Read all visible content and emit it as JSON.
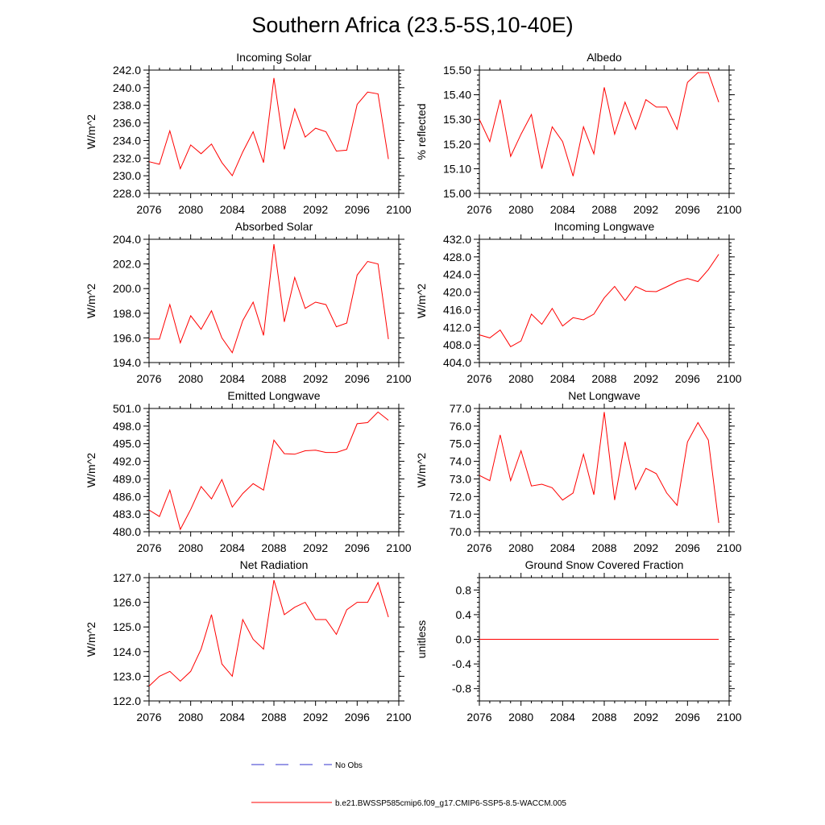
{
  "title": "Southern Africa (23.5-5S,10-40E)",
  "colors": {
    "model": "#ff0000",
    "obs": "#3333cc",
    "axis": "#000000"
  },
  "legend": {
    "obs_label": "No Obs",
    "model_label": "b.e21.BWSSP585cmip6.f09_g17.CMIP6-SSP5-8.5-WACCM.005"
  },
  "chart_data": [
    {
      "type": "line",
      "title": "Incoming Solar",
      "ylabel": "W/m^2",
      "xlim": [
        2076,
        2100
      ],
      "xticks": [
        "2076",
        "2080",
        "2084",
        "2088",
        "2092",
        "2096",
        "2100"
      ],
      "ylim": [
        228,
        242
      ],
      "yticks": [
        "228.0",
        "230.0",
        "232.0",
        "234.0",
        "236.0",
        "238.0",
        "240.0",
        "242.0"
      ],
      "x": [
        2076,
        2077,
        2078,
        2079,
        2080,
        2081,
        2082,
        2083,
        2084,
        2085,
        2086,
        2087,
        2088,
        2089,
        2090,
        2091,
        2092,
        2093,
        2094,
        2095,
        2096,
        2097,
        2098,
        2099
      ],
      "series": [
        {
          "values": [
            231.6,
            231.3,
            235.1,
            230.8,
            233.5,
            232.5,
            233.6,
            231.5,
            230.0,
            232.7,
            235.0,
            231.5,
            241.1,
            233.0,
            237.6,
            234.4,
            235.4,
            235.0,
            232.8,
            232.9,
            238.1,
            239.5,
            239.3,
            231.9
          ]
        }
      ]
    },
    {
      "type": "line",
      "title": "Albedo",
      "ylabel": "% reflected",
      "xlim": [
        2076,
        2100
      ],
      "xticks": [
        "2076",
        "2080",
        "2084",
        "2088",
        "2092",
        "2096",
        "2100"
      ],
      "ylim": [
        15.0,
        15.5
      ],
      "yticks": [
        "15.00",
        "15.10",
        "15.20",
        "15.30",
        "15.40",
        "15.50"
      ],
      "x": [
        2076,
        2077,
        2078,
        2079,
        2080,
        2081,
        2082,
        2083,
        2084,
        2085,
        2086,
        2087,
        2088,
        2089,
        2090,
        2091,
        2092,
        2093,
        2094,
        2095,
        2096,
        2097,
        2098,
        2099
      ],
      "series": [
        {
          "values": [
            15.3,
            15.21,
            15.38,
            15.15,
            15.24,
            15.32,
            15.1,
            15.27,
            15.21,
            15.07,
            15.27,
            15.16,
            15.43,
            15.24,
            15.37,
            15.26,
            15.38,
            15.35,
            15.35,
            15.26,
            15.45,
            15.49,
            15.49,
            15.37
          ]
        }
      ]
    },
    {
      "type": "line",
      "title": "Absorbed Solar",
      "ylabel": "W/m^2",
      "xlim": [
        2076,
        2100
      ],
      "xticks": [
        "2076",
        "2080",
        "2084",
        "2088",
        "2092",
        "2096",
        "2100"
      ],
      "ylim": [
        194,
        204
      ],
      "yticks": [
        "194.0",
        "196.0",
        "198.0",
        "200.0",
        "202.0",
        "204.0"
      ],
      "x": [
        2076,
        2077,
        2078,
        2079,
        2080,
        2081,
        2082,
        2083,
        2084,
        2085,
        2086,
        2087,
        2088,
        2089,
        2090,
        2091,
        2092,
        2093,
        2094,
        2095,
        2096,
        2097,
        2098,
        2099
      ],
      "series": [
        {
          "values": [
            195.9,
            195.9,
            198.7,
            195.6,
            197.8,
            196.7,
            198.2,
            196.0,
            194.8,
            197.4,
            198.9,
            196.2,
            203.6,
            197.3,
            200.9,
            198.4,
            198.9,
            198.7,
            196.9,
            197.2,
            201.1,
            202.2,
            202.0,
            195.9
          ]
        }
      ]
    },
    {
      "type": "line",
      "title": "Incoming Longwave",
      "ylabel": "W/m^2",
      "xlim": [
        2076,
        2100
      ],
      "xticks": [
        "2076",
        "2080",
        "2084",
        "2088",
        "2092",
        "2096",
        "2100"
      ],
      "ylim": [
        404,
        432
      ],
      "yticks": [
        "404.0",
        "408.0",
        "412.0",
        "416.0",
        "420.0",
        "424.0",
        "428.0",
        "432.0"
      ],
      "x": [
        2076,
        2077,
        2078,
        2079,
        2080,
        2081,
        2082,
        2083,
        2084,
        2085,
        2086,
        2087,
        2088,
        2089,
        2090,
        2091,
        2092,
        2093,
        2094,
        2095,
        2096,
        2097,
        2098,
        2099
      ],
      "series": [
        {
          "values": [
            410.3,
            409.6,
            411.4,
            407.6,
            408.9,
            415.0,
            412.7,
            416.3,
            412.3,
            414.2,
            413.7,
            415.0,
            418.7,
            421.3,
            418.1,
            421.3,
            420.2,
            420.1,
            421.2,
            422.4,
            423.1,
            422.4,
            425.1,
            428.6
          ]
        }
      ]
    },
    {
      "type": "line",
      "title": "Emitted Longwave",
      "ylabel": "W/m^2",
      "xlim": [
        2076,
        2100
      ],
      "xticks": [
        "2076",
        "2080",
        "2084",
        "2088",
        "2092",
        "2096",
        "2100"
      ],
      "ylim": [
        480,
        501
      ],
      "yticks": [
        "480.0",
        "483.0",
        "486.0",
        "489.0",
        "492.0",
        "495.0",
        "498.0",
        "501.0"
      ],
      "x": [
        2076,
        2077,
        2078,
        2079,
        2080,
        2081,
        2082,
        2083,
        2084,
        2085,
        2086,
        2087,
        2088,
        2089,
        2090,
        2091,
        2092,
        2093,
        2094,
        2095,
        2096,
        2097,
        2098,
        2099
      ],
      "series": [
        {
          "values": [
            483.7,
            482.6,
            487.1,
            480.4,
            483.8,
            487.7,
            485.6,
            488.9,
            484.2,
            486.5,
            488.2,
            487.1,
            495.6,
            493.3,
            493.2,
            493.8,
            493.9,
            493.5,
            493.5,
            494.1,
            498.4,
            498.6,
            500.4,
            499.0
          ]
        }
      ]
    },
    {
      "type": "line",
      "title": "Net Longwave",
      "ylabel": "W/m^2",
      "xlim": [
        2076,
        2100
      ],
      "xticks": [
        "2076",
        "2080",
        "2084",
        "2088",
        "2092",
        "2096",
        "2100"
      ],
      "ylim": [
        70,
        77
      ],
      "yticks": [
        "70.0",
        "71.0",
        "72.0",
        "73.0",
        "74.0",
        "75.0",
        "76.0",
        "77.0"
      ],
      "x": [
        2076,
        2077,
        2078,
        2079,
        2080,
        2081,
        2082,
        2083,
        2084,
        2085,
        2086,
        2087,
        2088,
        2089,
        2090,
        2091,
        2092,
        2093,
        2094,
        2095,
        2096,
        2097,
        2098,
        2099
      ],
      "series": [
        {
          "values": [
            73.2,
            72.9,
            75.5,
            72.9,
            74.6,
            72.6,
            72.7,
            72.5,
            71.8,
            72.2,
            74.4,
            72.1,
            76.8,
            71.8,
            75.1,
            72.4,
            73.6,
            73.3,
            72.2,
            71.5,
            75.1,
            76.2,
            75.2,
            70.5
          ]
        }
      ]
    },
    {
      "type": "line",
      "title": "Net Radiation",
      "ylabel": "W/m^2",
      "xlim": [
        2076,
        2100
      ],
      "xticks": [
        "2076",
        "2080",
        "2084",
        "2088",
        "2092",
        "2096",
        "2100"
      ],
      "ylim": [
        122,
        127
      ],
      "yticks": [
        "122.0",
        "123.0",
        "124.0",
        "125.0",
        "126.0",
        "127.0"
      ],
      "x": [
        2076,
        2077,
        2078,
        2079,
        2080,
        2081,
        2082,
        2083,
        2084,
        2085,
        2086,
        2087,
        2088,
        2089,
        2090,
        2091,
        2092,
        2093,
        2094,
        2095,
        2096,
        2097,
        2098,
        2099
      ],
      "series": [
        {
          "values": [
            122.6,
            123.0,
            123.2,
            122.8,
            123.2,
            124.1,
            125.5,
            123.5,
            123.0,
            125.3,
            124.5,
            124.1,
            126.9,
            125.5,
            125.8,
            126.0,
            125.3,
            125.3,
            124.7,
            125.7,
            126.0,
            126.0,
            126.8,
            125.4
          ]
        }
      ]
    },
    {
      "type": "line",
      "title": "Ground Snow Covered Fraction",
      "ylabel": "unitless",
      "xlim": [
        2076,
        2100
      ],
      "xticks": [
        "2076",
        "2080",
        "2084",
        "2088",
        "2092",
        "2096",
        "2100"
      ],
      "ylim": [
        -1.0,
        1.0
      ],
      "yticks": [
        "-0.8",
        "-0.4",
        "0.0",
        "0.4",
        "0.8"
      ],
      "ytick_values": [
        -0.8,
        -0.4,
        0.0,
        0.4,
        0.8
      ],
      "x": [
        2076,
        2077,
        2078,
        2079,
        2080,
        2081,
        2082,
        2083,
        2084,
        2085,
        2086,
        2087,
        2088,
        2089,
        2090,
        2091,
        2092,
        2093,
        2094,
        2095,
        2096,
        2097,
        2098,
        2099
      ],
      "series": [
        {
          "values": [
            0,
            0,
            0,
            0,
            0,
            0,
            0,
            0,
            0,
            0,
            0,
            0,
            0,
            0,
            0,
            0,
            0,
            0,
            0,
            0,
            0,
            0,
            0,
            0
          ]
        }
      ]
    }
  ]
}
